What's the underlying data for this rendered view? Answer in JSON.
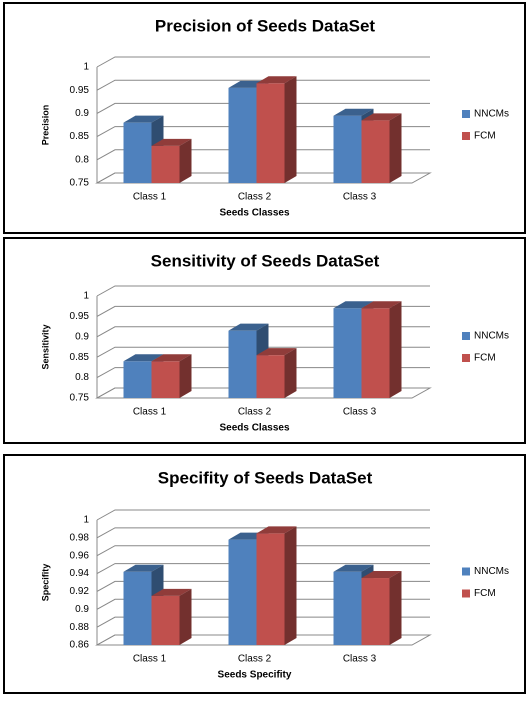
{
  "chart_data": [
    {
      "type": "bar3d",
      "title": "Precision of Seeds DataSet",
      "y_label": "Precision",
      "x_label": "Seeds Classes",
      "categories": [
        "Class 1",
        "Class 2",
        "Class 3"
      ],
      "series": [
        {
          "name": "NNCMs",
          "color": "#4f81bd",
          "values": [
            0.88,
            0.955,
            0.895
          ]
        },
        {
          "name": "FCM",
          "color": "#c0504d",
          "values": [
            0.83,
            0.965,
            0.885
          ]
        }
      ],
      "ylim": [
        0.75,
        1
      ],
      "yticks": [
        0.75,
        0.8,
        0.85,
        0.9,
        0.95,
        1
      ],
      "grid": true,
      "legend": "right"
    },
    {
      "type": "bar3d",
      "title": "Sensitivity of Seeds DataSet",
      "y_label": "Sensitivity",
      "x_label": "Seeds Classes",
      "categories": [
        "Class 1",
        "Class 2",
        "Class 3"
      ],
      "series": [
        {
          "name": "NNCMs",
          "color": "#4f81bd",
          "values": [
            0.84,
            0.915,
            0.97
          ]
        },
        {
          "name": "FCM",
          "color": "#c0504d",
          "values": [
            0.84,
            0.855,
            0.97
          ]
        }
      ],
      "ylim": [
        0.75,
        1
      ],
      "yticks": [
        0.75,
        0.8,
        0.85,
        0.9,
        0.95,
        1
      ],
      "grid": true,
      "legend": "right"
    },
    {
      "type": "bar3d",
      "title": "Specifity of Seeds DataSet",
      "y_label": "Specifity",
      "x_label": "Seeds Specifity",
      "categories": [
        "Class 1",
        "Class 2",
        "Class 3"
      ],
      "series": [
        {
          "name": "NNCMs",
          "color": "#4f81bd",
          "values": [
            0.942,
            0.978,
            0.942
          ]
        },
        {
          "name": "FCM",
          "color": "#c0504d",
          "values": [
            0.915,
            0.985,
            0.935
          ]
        }
      ],
      "ylim": [
        0.86,
        1
      ],
      "yticks": [
        0.86,
        0.88,
        0.9,
        0.92,
        0.94,
        0.96,
        0.98,
        1
      ],
      "grid": true,
      "legend": "right"
    }
  ]
}
